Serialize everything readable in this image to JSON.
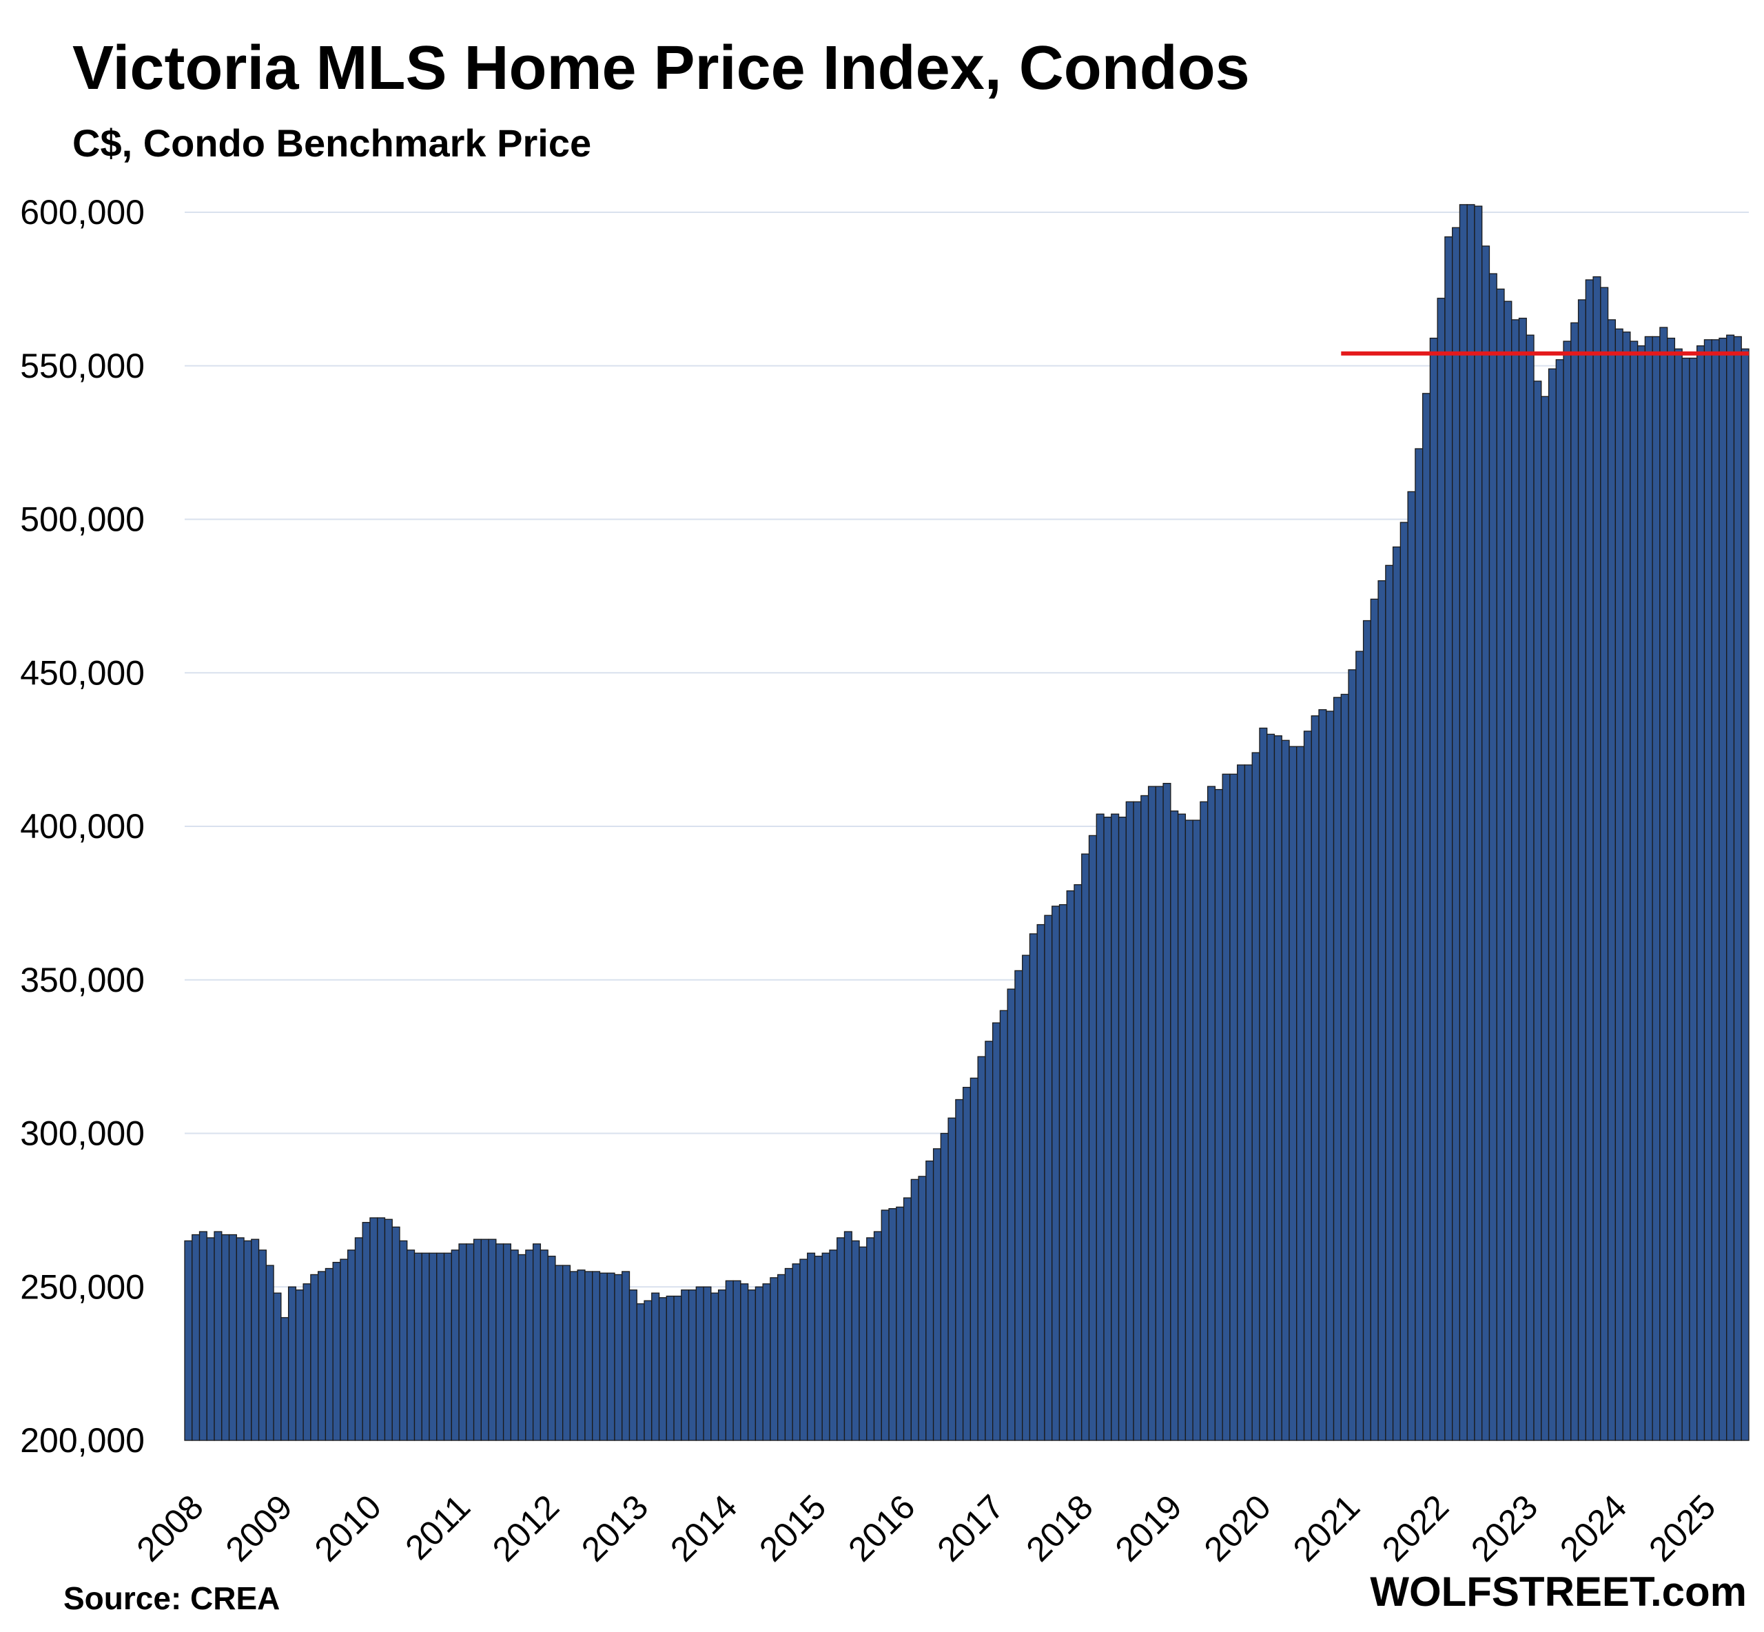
{
  "title": "Victoria MLS Home Price Index, Condos",
  "subtitle": "C$, Condo Benchmark Price",
  "source": "Source: CREA",
  "brand": "WOLFSTREET.com",
  "colors": {
    "bar": "#2F5591",
    "bar_edge": "#1A1A1A",
    "reference_line": "#E41A1C",
    "grid": "#D9E1EE"
  },
  "chart_data": {
    "type": "bar",
    "title": "Victoria MLS Home Price Index, Condos",
    "subtitle": "C$, Condo Benchmark Price",
    "ylim": [
      200000,
      600000
    ],
    "y_ticks": [
      "200,000",
      "250,000",
      "300,000",
      "350,000",
      "400,000",
      "450,000",
      "500,000",
      "550,000",
      "600,000"
    ],
    "y_tick_values": [
      200000,
      250000,
      300000,
      350000,
      400000,
      450000,
      500000,
      550000,
      600000
    ],
    "x_tick_labels": [
      "2008",
      "2009",
      "2010",
      "2011",
      "2012",
      "2013",
      "2014",
      "2015",
      "2016",
      "2017",
      "2018",
      "2019",
      "2020",
      "2021",
      "2022",
      "2023",
      "2024",
      "2025"
    ],
    "grid": true,
    "frequency": "monthly",
    "start": "2008-01",
    "end": "2025-07",
    "reference_line": {
      "value": 554000,
      "from": "2021-01"
    },
    "values": [
      265000,
      267000,
      268000,
      266000,
      268000,
      267000,
      267000,
      266000,
      265000,
      265500,
      262000,
      257000,
      248000,
      240000,
      250000,
      249000,
      251000,
      254000,
      255000,
      256000,
      258000,
      259000,
      262000,
      266000,
      271000,
      272500,
      272500,
      272000,
      269500,
      265000,
      262000,
      261000,
      261000,
      261000,
      261000,
      261000,
      262000,
      264000,
      264000,
      265500,
      265500,
      265500,
      264000,
      264000,
      262000,
      260500,
      262000,
      264000,
      262000,
      260000,
      257000,
      257000,
      255000,
      255500,
      255000,
      255000,
      254500,
      254500,
      254000,
      255000,
      249000,
      244500,
      245500,
      248000,
      246500,
      247000,
      247000,
      249000,
      249000,
      250000,
      250000,
      248000,
      249000,
      252000,
      252000,
      251000,
      249000,
      250000,
      251000,
      253000,
      254000,
      256000,
      257500,
      259000,
      261000,
      260000,
      261000,
      262000,
      266000,
      268000,
      265000,
      263000,
      266000,
      268000,
      275000,
      275500,
      276000,
      279000,
      285000,
      286000,
      291000,
      295000,
      300000,
      305000,
      311000,
      315000,
      318000,
      325000,
      330000,
      336000,
      340000,
      347000,
      353000,
      358000,
      365000,
      368000,
      371000,
      374000,
      374500,
      379000,
      381000,
      391000,
      397000,
      404000,
      403000,
      404000,
      403000,
      408000,
      408000,
      410000,
      413000,
      413000,
      414000,
      405000,
      404000,
      402000,
      402000,
      408000,
      413000,
      412000,
      417000,
      417000,
      420000,
      420000,
      424000,
      432000,
      430000,
      429500,
      428000,
      426000,
      426000,
      431000,
      436000,
      438000,
      437500,
      442000,
      443000,
      451000,
      457000,
      467000,
      474000,
      480000,
      485000,
      491000,
      499000,
      509000,
      523000,
      541000,
      559000,
      572000,
      592000,
      595000,
      602500,
      602500,
      602000,
      589000,
      580000,
      575000,
      571000,
      565000,
      565500,
      560000,
      545000,
      540000,
      549000,
      552000,
      558000,
      564000,
      571500,
      578000,
      579000,
      575500,
      565000,
      562000,
      561000,
      558000,
      556500,
      559500,
      559500,
      562500,
      559000,
      555500,
      552500,
      552500,
      556500,
      558500,
      558500,
      559000,
      560000,
      559500,
      555500
    ]
  }
}
